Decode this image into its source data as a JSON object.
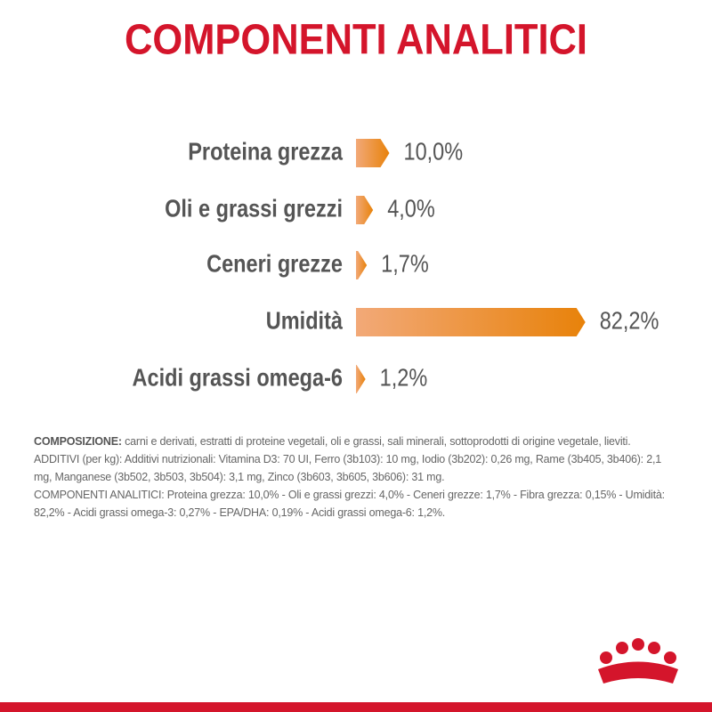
{
  "chart_data": {
    "type": "bar",
    "orientation": "horizontal",
    "title": "COMPONENTI ANALITICI",
    "categories": [
      "Proteina grezza",
      "Oli e grassi grezzi",
      "Ceneri grezze",
      "Umidità",
      "Acidi grassi omega-6"
    ],
    "values": [
      10.0,
      4.0,
      1.7,
      82.2,
      1.2
    ],
    "value_labels": [
      "10,0%",
      "4,0%",
      "1,7%",
      "82,2%",
      "1,2%"
    ],
    "color": "#e8820a"
  },
  "composition": {
    "label": "COMPOSIZIONE:",
    "text": "carni e derivati, estratti di proteine vegetali, oli e grassi, sali minerali, sottoprodotti di origine vegetale, lieviti.",
    "additives": "ADDITIVI (per kg): Additivi nutrizionali: Vitamina D3: 70 UI, Ferro (3b103): 10 mg, Iodio (3b202): 0,26 mg, Rame (3b405, 3b406): 2,1 mg, Manganese (3b502, 3b503, 3b504): 3,1 mg, Zinco (3b603, 3b605, 3b606): 31 mg.",
    "analytic": "COMPONENTI ANALITICI: Proteina grezza: 10,0% - Oli e grassi grezzi: 4,0% - Ceneri grezze: 1,7% - Fibra grezza: 0,15% - Umidità: 82,2% - Acidi grassi omega-3: 0,27% - EPA/DHA: 0,19% - Acidi grassi omega-6: 1,2%."
  }
}
